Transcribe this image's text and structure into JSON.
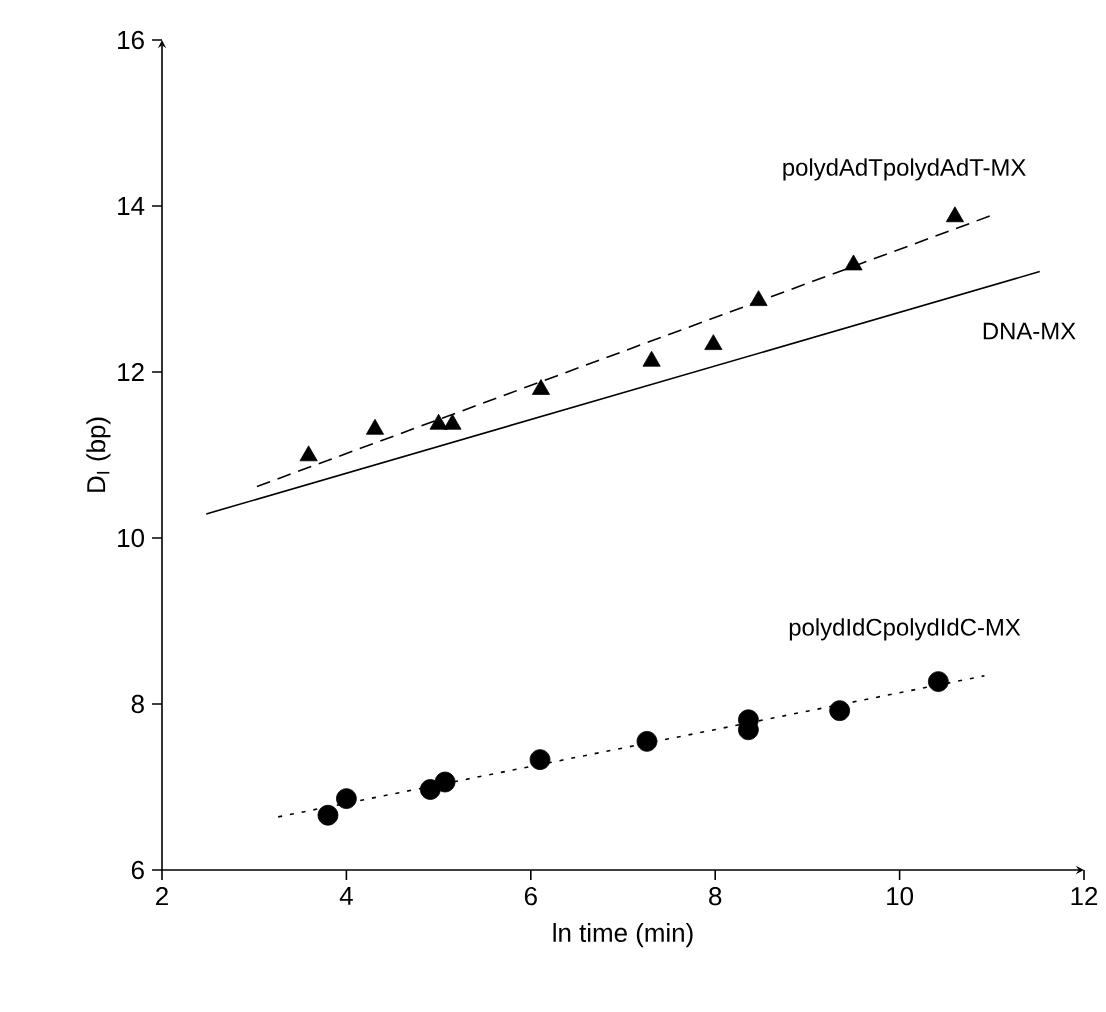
{
  "chart_data": {
    "type": "scatter",
    "xlabel": "ln time (min)",
    "ylabel": "D$_{I}$ (bp)",
    "xlim": [
      2,
      12
    ],
    "ylim": [
      6,
      16
    ],
    "xticks": [
      2,
      4,
      6,
      8,
      10,
      12
    ],
    "yticks": [
      6,
      8,
      10,
      12,
      14,
      16
    ],
    "series": [
      {
        "marker": "triangle",
        "color": "#000000",
        "x": [
          3.59,
          4.31,
          5.0,
          5.15,
          6.11,
          7.31,
          7.98,
          8.47,
          9.5,
          10.6
        ],
        "values": [
          10.99,
          11.31,
          11.37,
          11.37,
          11.79,
          12.13,
          12.33,
          12.86,
          13.29,
          13.87
        ]
      },
      {
        "type": "line",
        "name": "polydAdTpolydAdT-MX",
        "line_style": "dashed",
        "color": "#000000",
        "x": [
          3.03,
          10.98
        ],
        "values": [
          10.62,
          13.88
        ]
      },
      {
        "type": "line",
        "name": "DNA-MX",
        "line_style": "solid",
        "color": "#000000",
        "x": [
          2.48,
          11.52
        ],
        "values": [
          10.29,
          13.21
        ]
      },
      {
        "marker": "circle",
        "color": "#000000",
        "x": [
          3.8,
          4.0,
          4.91,
          5.07,
          6.1,
          7.26,
          8.36,
          8.36,
          9.35,
          10.42
        ],
        "values": [
          6.66,
          6.86,
          6.97,
          7.06,
          7.33,
          7.55,
          7.81,
          7.69,
          7.92,
          8.27
        ]
      },
      {
        "type": "line",
        "name": "polydIdCpolydIdC-MX",
        "line_style": "dotted",
        "color": "#000000",
        "x": [
          3.26,
          10.92
        ],
        "values": [
          6.64,
          8.34
        ]
      }
    ]
  }
}
